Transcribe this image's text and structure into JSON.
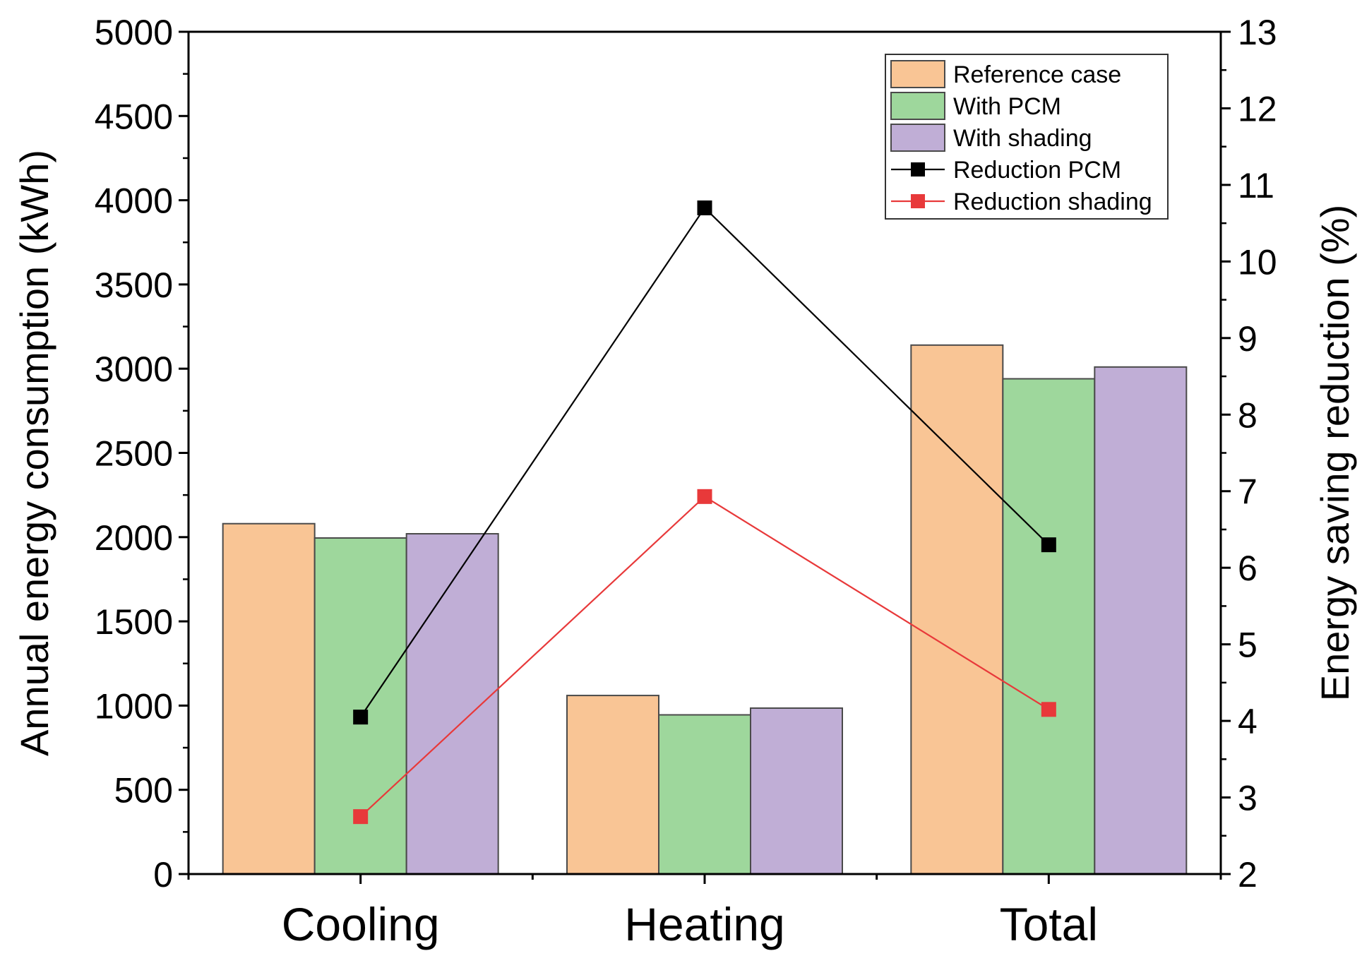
{
  "chart_data": {
    "type": "bar",
    "categories": [
      "Cooling",
      "Heating",
      "Total"
    ],
    "series": [
      {
        "name": "Reference case",
        "type": "bar",
        "axis": "left",
        "values": [
          2080,
          1060,
          3140
        ],
        "color": "#f9c595"
      },
      {
        "name": "With PCM",
        "type": "bar",
        "axis": "left",
        "values": [
          1995,
          945,
          2940
        ],
        "color": "#9ed79c"
      },
      {
        "name": "With shading",
        "type": "bar",
        "axis": "left",
        "values": [
          2020,
          985,
          3010
        ],
        "color": "#c0aed6"
      },
      {
        "name": "Reduction PCM",
        "type": "line",
        "axis": "right",
        "values": [
          4.05,
          10.7,
          6.3
        ],
        "color": "#000000"
      },
      {
        "name": "Reduction shading",
        "type": "line",
        "axis": "right",
        "values": [
          2.75,
          6.93,
          4.15
        ],
        "color": "#e8393a"
      }
    ],
    "ylabel": "Annual energy consumption (kWh)",
    "y2label": "Energy saving reduction (%)",
    "ylim": [
      0,
      5000
    ],
    "y2lim": [
      2,
      13
    ],
    "yticks": [
      "0",
      "500",
      "1000",
      "1500",
      "2000",
      "2500",
      "3000",
      "3500",
      "4000",
      "4500",
      "5000"
    ],
    "y2ticks": [
      "2",
      "3",
      "4",
      "5",
      "6",
      "7",
      "8",
      "9",
      "10",
      "11",
      "12",
      "13"
    ],
    "legend_position": "top-right",
    "grid": false
  }
}
